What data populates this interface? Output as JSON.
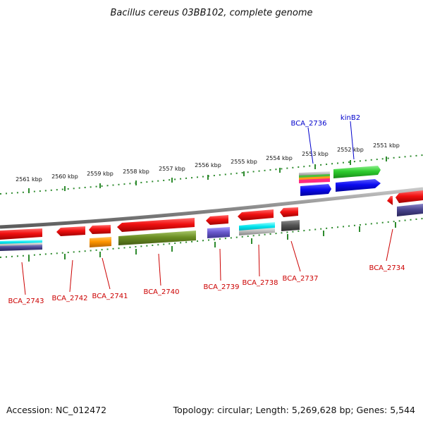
{
  "title": "Bacillus cereus 03BB102, complete genome",
  "footer": {
    "accession": "Accession: NC_012472",
    "summary": "Topology: circular; Length: 5,269,628 bp; Genes: 5,544"
  },
  "ruler_labels": [
    "2561 kbp",
    "2560 kbp",
    "2559 kbp",
    "2558 kbp",
    "2557 kbp",
    "2556 kbp",
    "2555 kbp",
    "2554 kbp",
    "2553 kbp",
    "2552 kbp",
    "2551 kbp"
  ],
  "gene_labels": {
    "bca_2736": "BCA_2736",
    "kinb2": "kinB2",
    "bca_2743": "BCA_2743",
    "bca_2742": "BCA_2742",
    "bca_2741": "BCA_2741",
    "bca_2740": "BCA_2740",
    "bca_2739": "BCA_2739",
    "bca_2738": "BCA_2738",
    "bca_2737": "BCA_2737",
    "bca_2734": "BCA_2734"
  },
  "colors": {
    "backbone": "#8a8a8a",
    "ticks": "#2e8b2e",
    "red_gene": "#ee1111",
    "label_red": "#cc0000",
    "label_blue": "#0000cc"
  }
}
